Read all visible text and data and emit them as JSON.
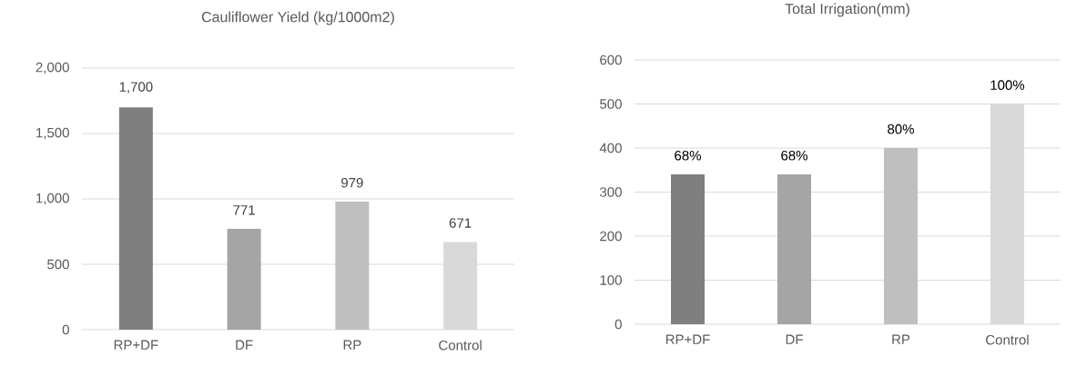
{
  "chart_data": [
    {
      "type": "bar",
      "title": "Cauliflower Yield (kg/1000m2)",
      "categories": [
        "RP+DF",
        "DF",
        "RP",
        "Control"
      ],
      "values": [
        1700,
        771,
        979,
        671
      ],
      "value_labels": [
        "1,700",
        "771",
        "979",
        "671"
      ],
      "colors": [
        "#7f7f7f",
        "#a5a5a5",
        "#bfbfbf",
        "#d9d9d9"
      ],
      "ylim": [
        0,
        2000
      ],
      "yticks": [
        0,
        500,
        {
          "value": 1000,
          "label": "1,000"
        },
        {
          "value": 1500,
          "label": "1,500"
        },
        {
          "value": 2000,
          "label": "2,000"
        }
      ],
      "grid": "y"
    },
    {
      "type": "bar",
      "title": "Total Irrigation(mm)",
      "categories": [
        "RP+DF",
        "DF",
        "RP",
        "Control"
      ],
      "values": [
        340,
        340,
        400,
        500
      ],
      "annotations": [
        {
          "text": "68%",
          "x": "RP+DF",
          "y": 340
        },
        {
          "text": "68%",
          "x": "DF",
          "y": 340
        },
        {
          "text": "80%",
          "x": "RP",
          "y": 400
        },
        {
          "text": "100%",
          "x": "Control",
          "y": 500
        }
      ],
      "colors": [
        "#7f7f7f",
        "#a5a5a5",
        "#bfbfbf",
        "#d9d9d9"
      ],
      "ylim": [
        0,
        600
      ],
      "yticks": [
        0,
        100,
        200,
        300,
        400,
        500,
        600
      ],
      "grid": "y"
    }
  ]
}
